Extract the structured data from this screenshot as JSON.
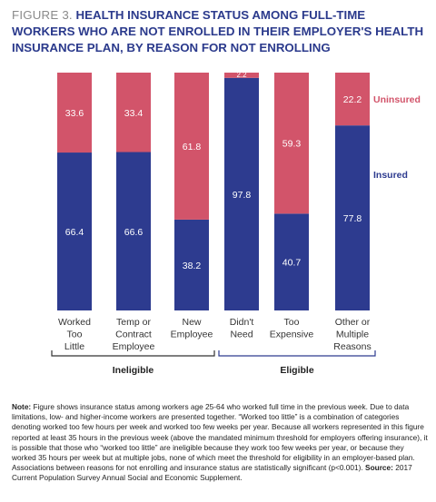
{
  "header": {
    "figure_label": "FIGURE 3.",
    "title": "HEALTH INSURANCE STATUS AMONG FULL-TIME WORKERS WHO ARE NOT ENROLLED IN THEIR EMPLOYER'S HEALTH INSURANCE PLAN, BY REASON FOR NOT ENROLLING"
  },
  "chart_data": {
    "type": "bar",
    "stacked": true,
    "categories": [
      [
        "Worked",
        "Too",
        "Little"
      ],
      [
        "Temp or",
        "Contract",
        "Employee"
      ],
      [
        "New",
        "Employee"
      ],
      [
        "Didn't",
        "Need"
      ],
      [
        "Too",
        "Expensive"
      ],
      [
        "Other or",
        "Multiple",
        "Reasons"
      ]
    ],
    "series": [
      {
        "name": "Insured",
        "color": "#2d3b8f",
        "values": [
          66.4,
          66.6,
          38.2,
          97.8,
          40.7,
          77.8
        ]
      },
      {
        "name": "Uninsured",
        "color": "#d2546a",
        "values": [
          33.6,
          33.4,
          61.8,
          2.2,
          59.3,
          22.2
        ]
      }
    ],
    "ylim": [
      0,
      100
    ],
    "groups": [
      {
        "label": "Ineligible",
        "from": 0,
        "to": 2,
        "color": "#333333"
      },
      {
        "label": "Eligible",
        "from": 3,
        "to": 5,
        "color": "#2d3b8f"
      }
    ],
    "legend": "right of last bar"
  },
  "note": {
    "label": "Note:",
    "text": " Figure shows insurance status among workers age 25-64 who worked full time in the previous week. Due to data limitations, low- and higher-income workers are presented together. “Worked too little” is a combination of categories denoting worked too few hours per week and worked too few weeks per year. Because all workers represented in this figure reported at least 35 hours in the previous week (above the mandated minimum threshold for employers offering insurance), it is possible that those who “worked too little” are ineligible because they work too few weeks per year, or because they worked 35 hours per week but at multiple jobs, none of which meet the threshold for eligibility in an employer-based plan. Associations between reasons for not enrolling and insurance status are statistically significant (p<0.001).",
    "source_label": "Source:",
    "source_text": " 2017 Current Population Survey Annual Social and Economic Supplement."
  }
}
